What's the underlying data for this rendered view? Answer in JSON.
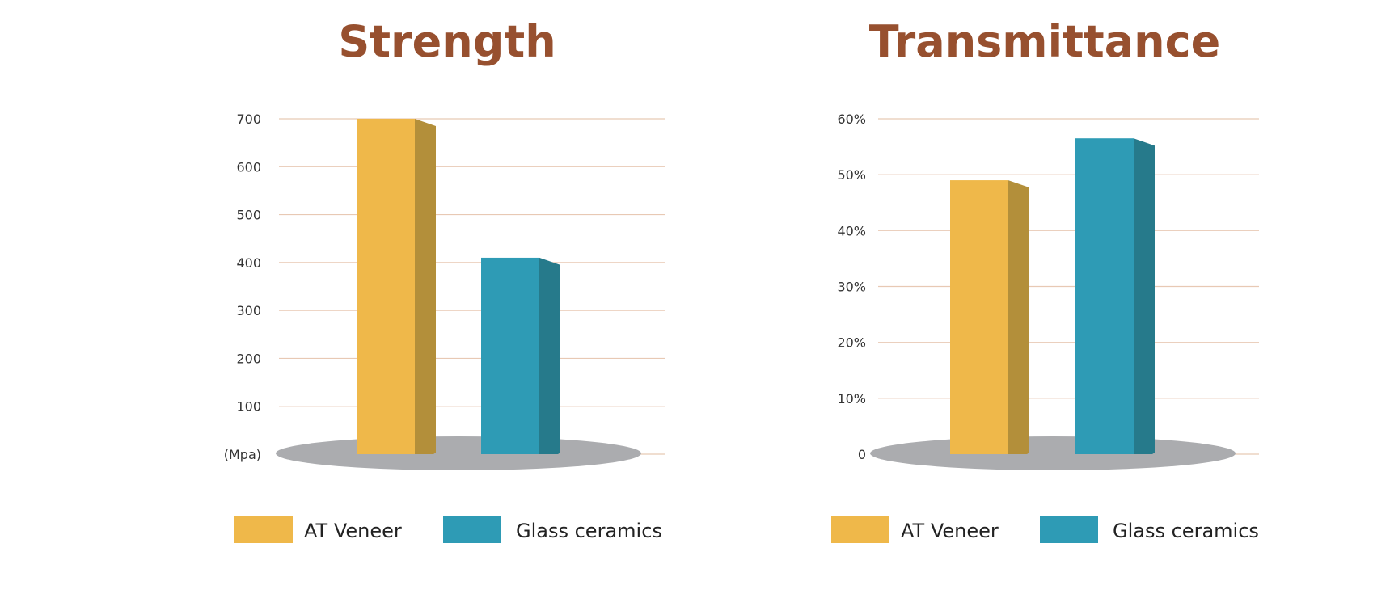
{
  "colors": {
    "title": "#97502f",
    "gridline": "#e8c9b4",
    "base": "#abacaf",
    "series": [
      {
        "front": "#efb84a",
        "side": "#b38f3a"
      },
      {
        "front": "#2e9bb5",
        "side": "#267a8b"
      }
    ]
  },
  "chart_data": [
    {
      "type": "bar",
      "title": "Strength",
      "categories": [
        "AT Veneer",
        "Glass ceramics"
      ],
      "values": [
        700,
        410
      ],
      "ylim": [
        0,
        700
      ],
      "yticks": [
        0,
        100,
        200,
        300,
        400,
        500,
        600,
        700
      ],
      "ytick_labels": [
        "(Mpa)",
        "100",
        "200",
        "300",
        "400",
        "500",
        "600",
        "700"
      ],
      "ylabel": "(Mpa)",
      "legend": [
        "AT Veneer",
        "Glass ceramics"
      ],
      "legend_position": "bottom",
      "grid": true
    },
    {
      "type": "bar",
      "title": "Transmittance",
      "categories": [
        "AT Veneer",
        "Glass ceramics"
      ],
      "values": [
        49,
        56.5
      ],
      "ylim": [
        0,
        60
      ],
      "yticks": [
        0,
        10,
        20,
        30,
        40,
        50,
        60
      ],
      "ytick_labels": [
        "0",
        "10%",
        "20%",
        "30%",
        "40%",
        "50%",
        "60%"
      ],
      "ylabel": "",
      "legend": [
        "AT Veneer",
        "Glass ceramics"
      ],
      "legend_position": "bottom",
      "grid": true
    }
  ]
}
